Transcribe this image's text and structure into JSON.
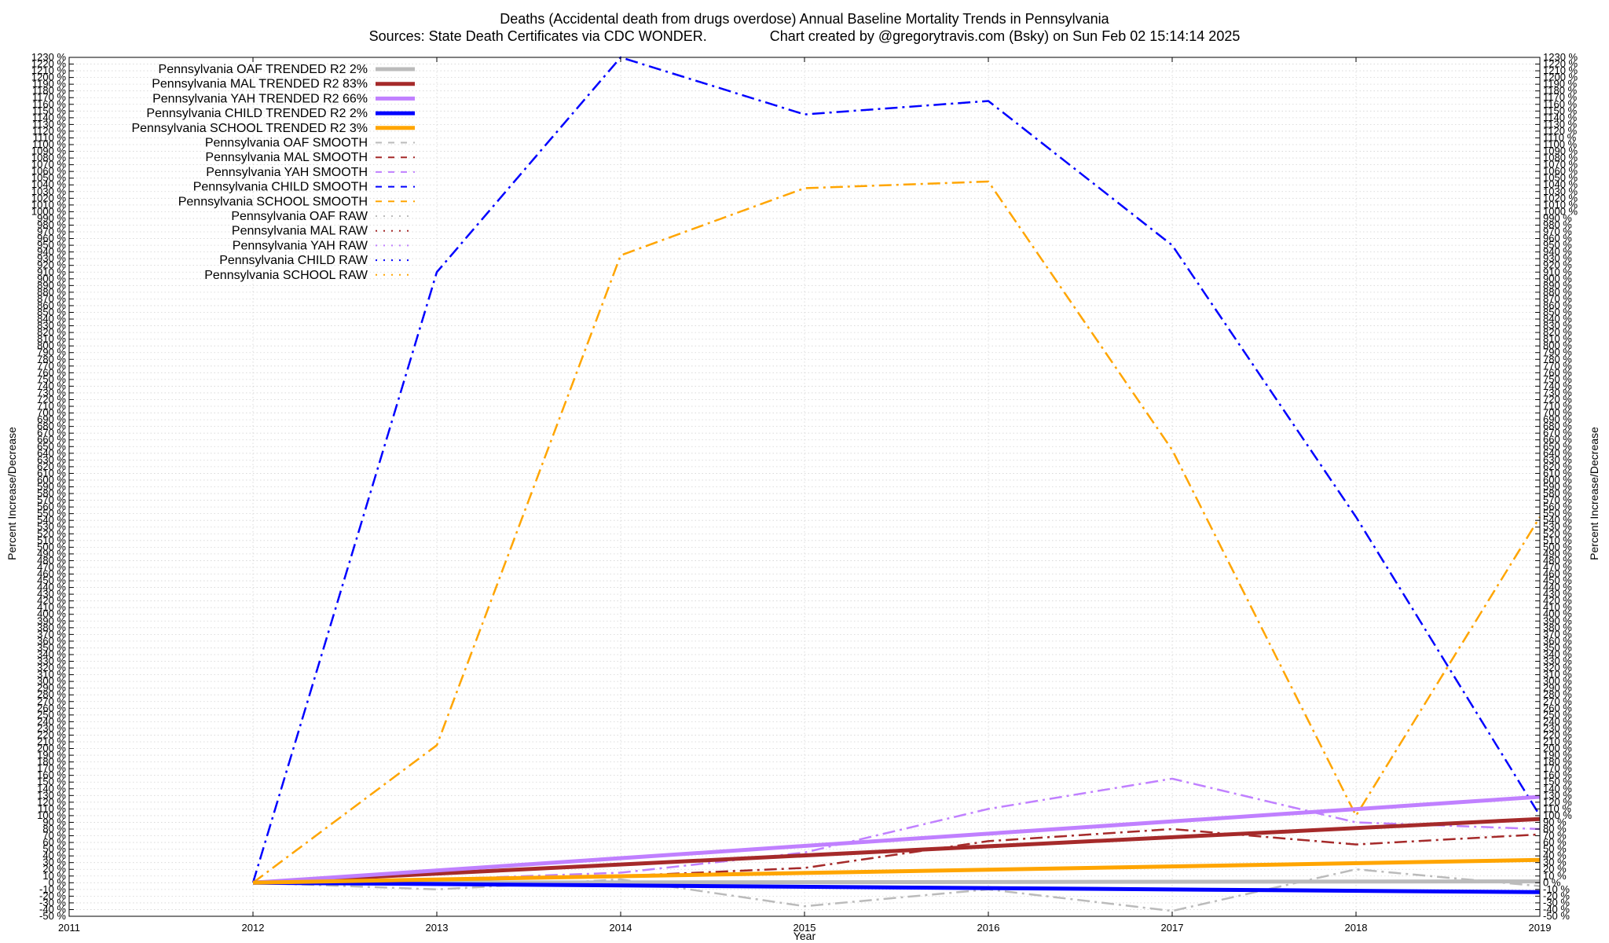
{
  "chart_data": {
    "type": "line",
    "title": "Deaths (Accidental death from drugs overdose)  Annual Baseline Mortality Trends in Pennsylvania",
    "subtitle": "Sources: State Death Certificates via CDC WONDER.                Chart created by @gregorytravis.com (Bsky) on Sun Feb 02 15:14:14 2025",
    "xlabel": "Year",
    "ylabel": "Percent Increase/Decrease",
    "y2label": "Percent Increase/Decrease",
    "xlim": [
      2011,
      2019
    ],
    "ylim": [
      -50,
      1230
    ],
    "y_tick_step": 10,
    "y_tick_suffix": " %",
    "x_ticks": [
      "2011",
      "2012",
      "2013",
      "2014",
      "2015",
      "2016",
      "2017",
      "2018",
      "2019"
    ],
    "grid": true,
    "legend_position": "top-left",
    "series": [
      {
        "name": "Pennsylvania OAF TRENDED R2   2%",
        "color": "#bbbbbb",
        "style": "solid",
        "width": 5,
        "x": [
          2012,
          2019
        ],
        "y": [
          0,
          2
        ]
      },
      {
        "name": "Pennsylvania MAL TRENDED R2  83%",
        "color": "#a52a2a",
        "style": "solid",
        "width": 5,
        "x": [
          2012,
          2019
        ],
        "y": [
          0,
          95
        ]
      },
      {
        "name": "Pennsylvania YAH TRENDED R2  66%",
        "color": "#c080ff",
        "style": "solid",
        "width": 5,
        "x": [
          2012,
          2019
        ],
        "y": [
          0,
          128
        ]
      },
      {
        "name": "Pennsylvania CHILD TRENDED R2   2%",
        "color": "#0000ff",
        "style": "solid",
        "width": 5,
        "x": [
          2012,
          2019
        ],
        "y": [
          0,
          -14
        ]
      },
      {
        "name": "Pennsylvania SCHOOL TRENDED R2   3%",
        "color": "#ffa500",
        "style": "solid",
        "width": 5,
        "x": [
          2012,
          2019
        ],
        "y": [
          0,
          34
        ]
      },
      {
        "name": "Pennsylvania OAF SMOOTH",
        "color": "#bbbbbb",
        "style": "dashdot",
        "width": 2.5,
        "x": [
          2012,
          2013,
          2014,
          2015,
          2016,
          2017,
          2018,
          2019
        ],
        "y": [
          0,
          -10,
          5,
          -35,
          -10,
          -42,
          20,
          -5
        ]
      },
      {
        "name": "Pennsylvania MAL SMOOTH",
        "color": "#a52a2a",
        "style": "dashdot",
        "width": 2.5,
        "x": [
          2012,
          2013,
          2014,
          2015,
          2016,
          2017,
          2018,
          2019
        ],
        "y": [
          0,
          3,
          10,
          22,
          62,
          80,
          57,
          72
        ]
      },
      {
        "name": "Pennsylvania YAH SMOOTH",
        "color": "#c080ff",
        "style": "dashdot",
        "width": 2.5,
        "x": [
          2012,
          2013,
          2014,
          2015,
          2016,
          2017,
          2018,
          2019
        ],
        "y": [
          0,
          5,
          15,
          45,
          110,
          155,
          90,
          80
        ]
      },
      {
        "name": "Pennsylvania CHILD SMOOTH",
        "color": "#0000ff",
        "style": "dashdot",
        "width": 2.5,
        "x": [
          2012,
          2013,
          2014,
          2015,
          2016,
          2017,
          2018,
          2019
        ],
        "y": [
          0,
          910,
          1230,
          1145,
          1165,
          950,
          545,
          100
        ]
      },
      {
        "name": "Pennsylvania SCHOOL SMOOTH",
        "color": "#ffa500",
        "style": "dashdot",
        "width": 2.5,
        "x": [
          2012,
          2013,
          2014,
          2015,
          2016,
          2017,
          2018,
          2019
        ],
        "y": [
          0,
          205,
          935,
          1035,
          1045,
          645,
          100,
          545
        ]
      },
      {
        "name": "Pennsylvania OAF RAW",
        "color": "#bbbbbb",
        "style": "dotted",
        "width": 2,
        "x": [],
        "y": []
      },
      {
        "name": "Pennsylvania MAL RAW",
        "color": "#a52a2a",
        "style": "dotted",
        "width": 2,
        "x": [],
        "y": []
      },
      {
        "name": "Pennsylvania YAH RAW",
        "color": "#c080ff",
        "style": "dotted",
        "width": 2,
        "x": [],
        "y": []
      },
      {
        "name": "Pennsylvania CHILD RAW",
        "color": "#0000ff",
        "style": "dotted",
        "width": 2,
        "x": [],
        "y": []
      },
      {
        "name": "Pennsylvania SCHOOL RAW",
        "color": "#ffa500",
        "style": "dotted",
        "width": 2,
        "x": [],
        "y": []
      }
    ]
  }
}
